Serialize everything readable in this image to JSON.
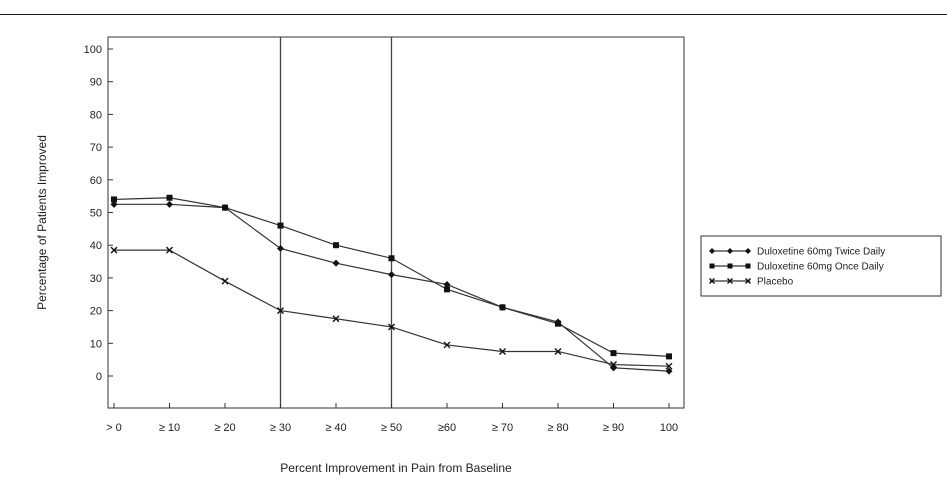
{
  "chart_data": {
    "type": "line",
    "title": "",
    "xlabel": "Percent Improvement in Pain from Baseline",
    "ylabel": "Percentage of Patients Improved",
    "categories": [
      "> 0",
      "≥ 10",
      "≥ 20",
      "≥ 30",
      "≥ 40",
      "≥ 50",
      "≥60",
      "≥ 70",
      "≥ 80",
      "≥ 90",
      "100"
    ],
    "yticks": [
      0,
      10,
      20,
      30,
      40,
      50,
      60,
      70,
      80,
      90,
      100
    ],
    "ylim": [
      -5,
      103
    ],
    "grid": false,
    "reference_lines_at_categories": [
      "≥ 30",
      "≥ 50"
    ],
    "legend_position": "right",
    "series": [
      {
        "name": "Duloxetine 60mg Twice Daily",
        "marker": "diamond",
        "values": [
          52.5,
          52.5,
          51.5,
          39,
          34.5,
          31,
          28,
          21,
          16.5,
          2.5,
          1.5
        ]
      },
      {
        "name": "Duloxetine 60mg Once Daily",
        "marker": "square",
        "values": [
          54,
          54.5,
          51.5,
          46,
          40,
          36,
          26.5,
          21,
          16,
          7,
          6
        ]
      },
      {
        "name": "Placebo",
        "marker": "x",
        "values": [
          38.5,
          38.5,
          29,
          20,
          17.5,
          15,
          9.5,
          7.5,
          7.5,
          3.5,
          3
        ]
      }
    ]
  }
}
